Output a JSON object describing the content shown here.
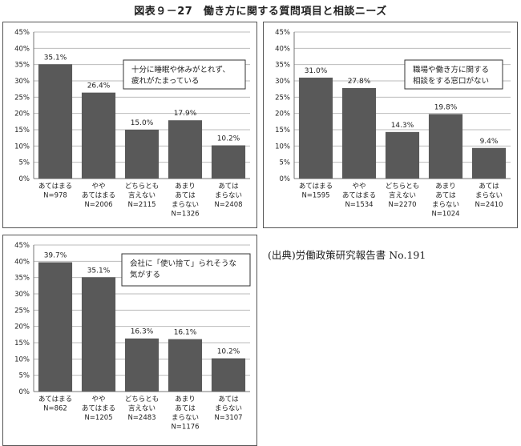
{
  "page_title": "図表９－27　働き方に関する質問項目と相談ニーズ",
  "source_note": "(出典)労働政策研究報告書 No.191",
  "colors": {
    "bar": "#595959",
    "grid": "#bbbbbb",
    "border": "#555555"
  },
  "chart_data": [
    {
      "type": "bar",
      "title": "",
      "annotation": [
        "十分に睡眠や休みがとれず、",
        "疲れがたまっている"
      ],
      "yticks": [
        "0%",
        "5%",
        "10%",
        "15%",
        "20%",
        "25%",
        "30%",
        "35%",
        "40%",
        "45%"
      ],
      "ylim": [
        0,
        45
      ],
      "categories": [
        [
          "あてはまる",
          "N=978"
        ],
        [
          "やや",
          "あてはまる",
          "N=2006"
        ],
        [
          "どちらとも",
          "言えない",
          "N=2115"
        ],
        [
          "あまり",
          "あては",
          "まらない",
          "N=1326"
        ],
        [
          "あては",
          "まらない",
          "N=2408"
        ]
      ],
      "values": [
        35.1,
        26.4,
        15.0,
        17.9,
        10.2
      ],
      "labels": [
        "35.1%",
        "26.4%",
        "15.0%",
        "17.9%",
        "10.2%"
      ]
    },
    {
      "type": "bar",
      "title": "",
      "annotation": [
        "職場や働き方に関する",
        "相談をする窓口がない"
      ],
      "yticks": [
        "0%",
        "5%",
        "10%",
        "15%",
        "20%",
        "25%",
        "30%",
        "35%",
        "40%",
        "45%"
      ],
      "ylim": [
        0,
        45
      ],
      "categories": [
        [
          "あてはまる",
          "N=1595"
        ],
        [
          "やや",
          "あてはまる",
          "N=1534"
        ],
        [
          "どちらとも",
          "言えない",
          "N=2270"
        ],
        [
          "あまり",
          "あては",
          "まらない",
          "N=1024"
        ],
        [
          "あては",
          "まらない",
          "N=2410"
        ]
      ],
      "values": [
        31.0,
        27.8,
        14.3,
        19.8,
        9.4
      ],
      "labels": [
        "31.0%",
        "27.8%",
        "14.3%",
        "19.8%",
        "9.4%"
      ]
    },
    {
      "type": "bar",
      "title": "",
      "annotation": [
        "会社に「使い捨て」られそうな",
        "気がする"
      ],
      "yticks": [
        "0%",
        "5%",
        "10%",
        "15%",
        "20%",
        "25%",
        "30%",
        "35%",
        "40%",
        "45%"
      ],
      "ylim": [
        0,
        45
      ],
      "categories": [
        [
          "あてはまる",
          "N=862"
        ],
        [
          "やや",
          "あてはまる",
          "N=1205"
        ],
        [
          "どちらとも",
          "言えない",
          "N=2483"
        ],
        [
          "あまり",
          "あては",
          "まらない",
          "N=1176"
        ],
        [
          "あては",
          "まらない",
          "N=3107"
        ]
      ],
      "values": [
        39.7,
        35.1,
        16.3,
        16.1,
        10.2
      ],
      "labels": [
        "39.7%",
        "35.1%",
        "16.3%",
        "16.1%",
        "10.2%"
      ]
    }
  ]
}
